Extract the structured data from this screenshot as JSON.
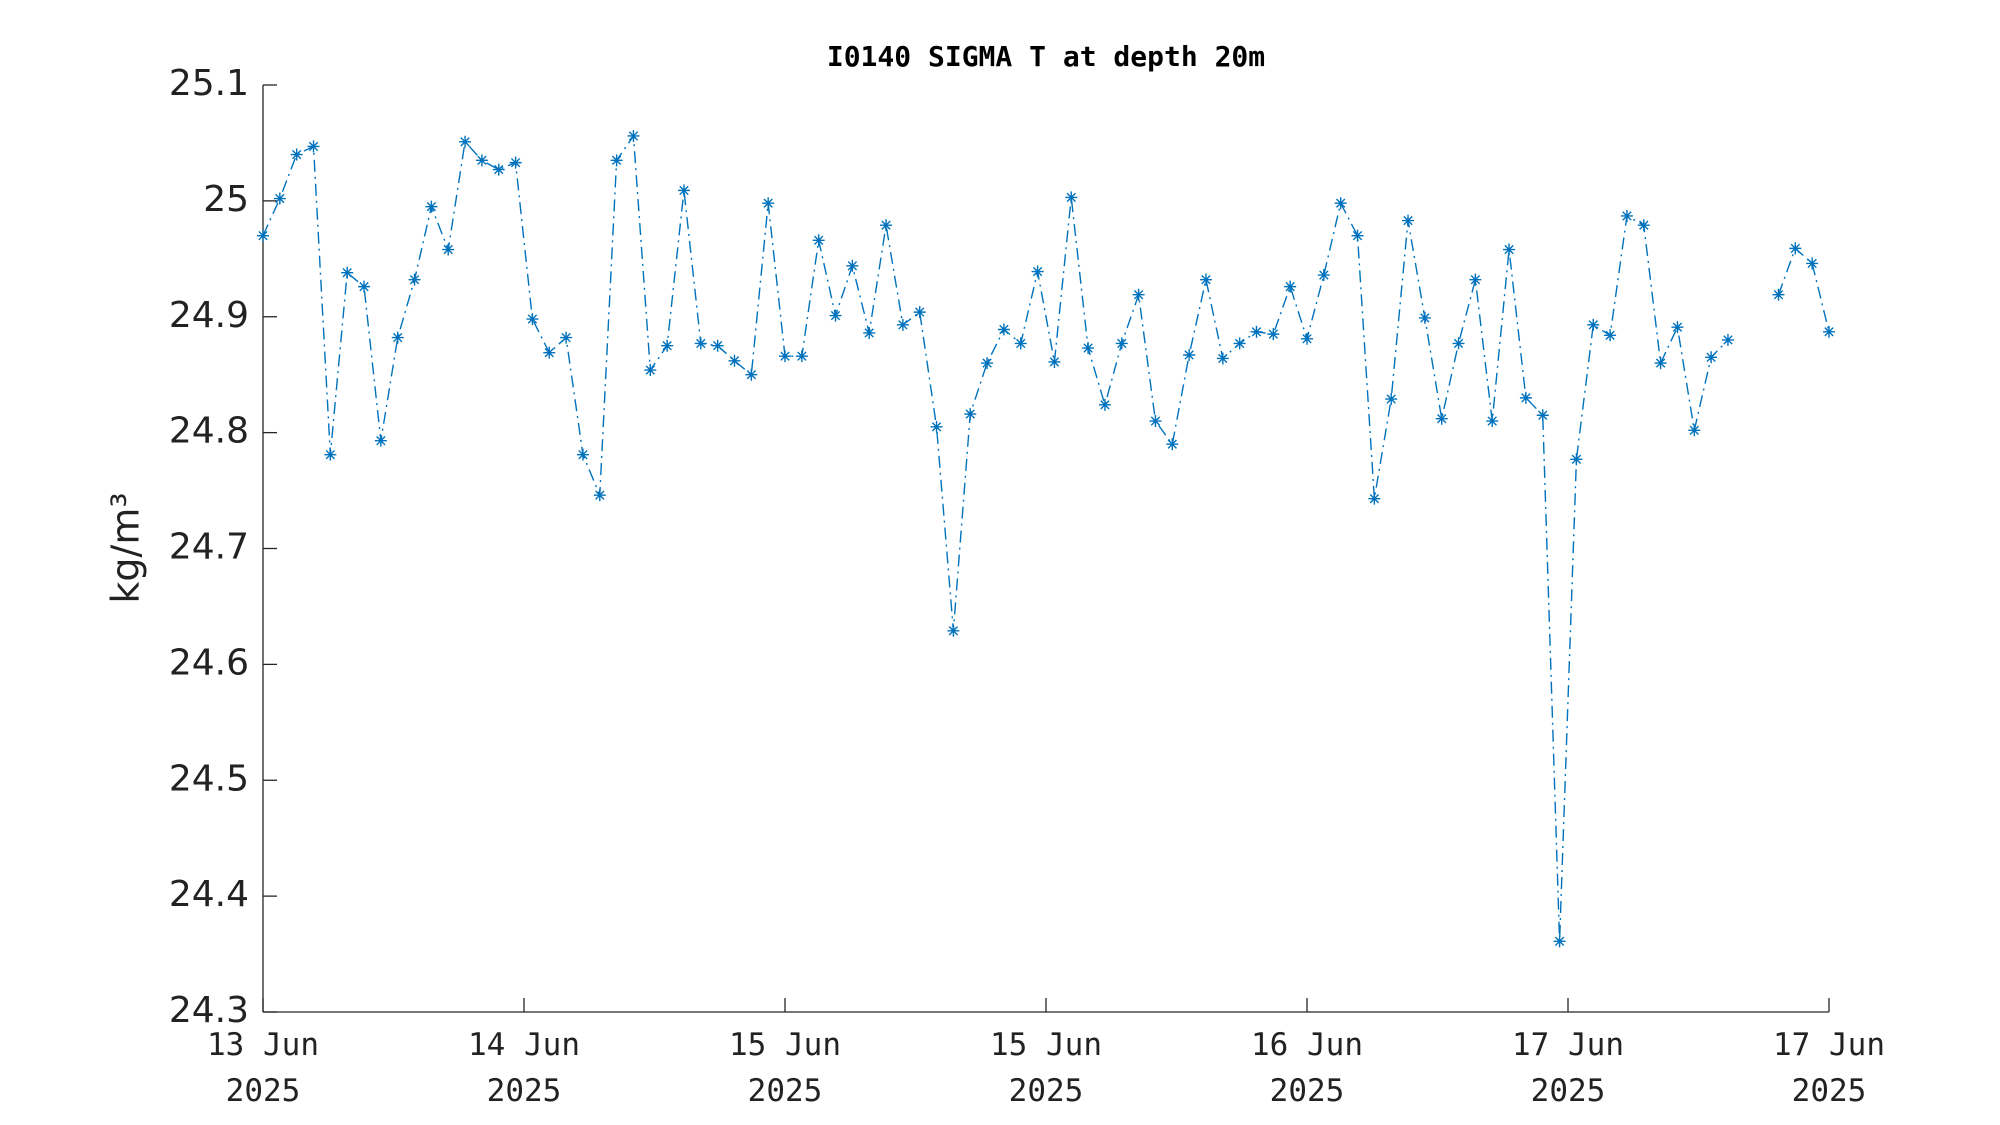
{
  "chart_data": {
    "type": "line",
    "title": "I0140 SIGMA T at depth 20m",
    "ylabel": "kg/m³",
    "series": [
      {
        "name": "SIGMA T",
        "color": "#0072bd",
        "values": [
          24.97,
          25.002,
          25.04,
          25.047,
          24.781,
          24.938,
          24.926,
          24.793,
          24.882,
          24.932,
          24.995,
          24.958,
          25.051,
          25.035,
          25.027,
          25.033,
          24.898,
          24.869,
          24.882,
          24.781,
          24.746,
          25.035,
          25.056,
          24.854,
          24.875,
          25.009,
          24.877,
          24.875,
          24.862,
          24.85,
          24.998,
          24.866,
          24.866,
          24.966,
          24.901,
          24.944,
          24.886,
          24.979,
          24.893,
          24.904,
          24.805,
          24.629,
          24.816,
          24.86,
          24.889,
          24.877,
          24.939,
          24.861,
          25.003,
          24.873,
          24.824,
          24.877,
          24.919,
          24.81,
          24.79,
          24.867,
          24.932,
          24.864,
          24.877,
          24.887,
          24.885,
          24.926,
          24.881,
          24.936,
          24.998,
          24.97,
          24.743,
          24.829,
          24.983,
          24.899,
          24.812,
          24.877,
          24.932,
          24.81,
          24.958,
          24.83,
          24.815,
          24.361,
          24.777,
          24.893,
          24.884,
          24.987,
          24.979,
          24.86,
          24.891,
          24.802,
          24.865,
          24.88,
          null,
          null,
          24.919,
          24.959,
          24.946,
          24.887
        ]
      }
    ],
    "xlim": [
      0,
      93
    ],
    "xticks": [
      {
        "value": 0,
        "label": "13 Jun\n2025"
      },
      {
        "value": 15.5,
        "label": "14 Jun\n2025"
      },
      {
        "value": 31,
        "label": "15 Jun\n2025"
      },
      {
        "value": 46.5,
        "label": "15 Jun\n2025"
      },
      {
        "value": 62,
        "label": "16 Jun\n2025"
      },
      {
        "value": 77.5,
        "label": "17 Jun\n2025"
      },
      {
        "value": 93,
        "label": "17 Jun\n2025"
      }
    ],
    "ylim": [
      24.3,
      25.1
    ],
    "yticks": [
      {
        "value": 24.3,
        "label": "24.3"
      },
      {
        "value": 24.4,
        "label": "24.4"
      },
      {
        "value": 24.5,
        "label": "24.5"
      },
      {
        "value": 24.6,
        "label": "24.6"
      },
      {
        "value": 24.7,
        "label": "24.7"
      },
      {
        "value": 24.8,
        "label": "24.8"
      },
      {
        "value": 24.9,
        "label": "24.9"
      },
      25,
      {
        "value": 25.1,
        "label": "25.1"
      }
    ],
    "line_style": "dashdot",
    "marker": "asterisk"
  }
}
